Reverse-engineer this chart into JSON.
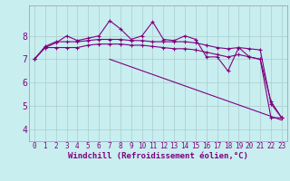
{
  "xlabel": "Windchill (Refroidissement éolien,°C)",
  "bg_color": "#c8eef0",
  "line_color": "#800080",
  "grid_color": "#aacccc",
  "x": [
    0,
    1,
    2,
    3,
    4,
    5,
    6,
    7,
    8,
    9,
    10,
    11,
    12,
    13,
    14,
    15,
    16,
    17,
    18,
    19,
    20,
    21,
    22,
    23
  ],
  "series1": [
    7.0,
    7.5,
    7.7,
    8.0,
    7.8,
    7.9,
    8.0,
    8.65,
    8.3,
    7.85,
    8.0,
    8.6,
    7.85,
    7.8,
    8.0,
    7.85,
    7.1,
    7.1,
    6.5,
    7.5,
    7.1,
    7.0,
    5.2,
    4.5
  ],
  "series2": [
    7.0,
    7.55,
    7.75,
    7.75,
    7.75,
    7.8,
    7.85,
    7.85,
    7.85,
    7.8,
    7.8,
    7.75,
    7.75,
    7.75,
    7.75,
    7.7,
    7.6,
    7.5,
    7.45,
    7.5,
    7.45,
    7.4,
    5.1,
    4.5
  ],
  "series3": [
    7.0,
    7.5,
    7.5,
    7.5,
    7.5,
    7.6,
    7.65,
    7.65,
    7.65,
    7.6,
    7.6,
    7.55,
    7.5,
    7.45,
    7.45,
    7.4,
    7.3,
    7.2,
    7.1,
    7.2,
    7.1,
    7.0,
    4.5,
    4.5
  ],
  "series4_linear": [
    7.0,
    23,
    4.4
  ],
  "ylim": [
    3.5,
    9.3
  ],
  "yticks": [
    4,
    5,
    6,
    7,
    8
  ],
  "xlim": [
    -0.5,
    23.5
  ],
  "xlabel_fontsize": 6.5,
  "tick_fontsize": 5.5,
  "ytick_fontsize": 7
}
